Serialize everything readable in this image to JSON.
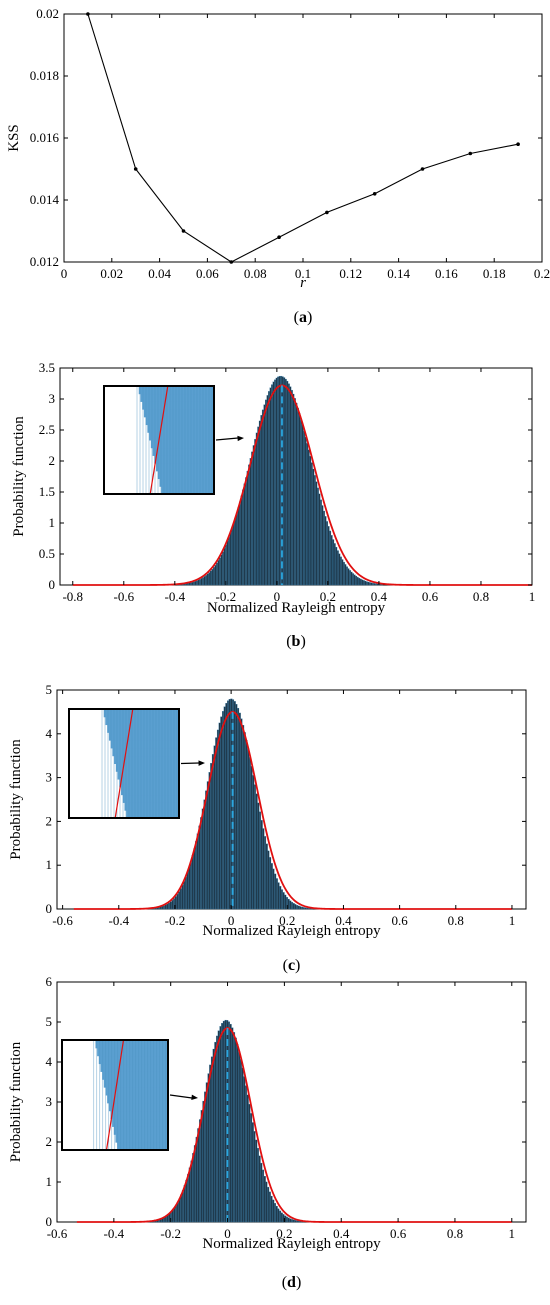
{
  "colors": {
    "axis": "#000000",
    "line_a": "#000000",
    "hist_fill": "#1f3a4d",
    "hist_edge": "#3a87b8",
    "inset_fill": "#5a9fd0",
    "fit_curve": "#e01010",
    "mean_line": "#2aa7e0"
  },
  "chart_data": [
    {
      "id": "a",
      "type": "line",
      "caption": {
        "open": "(",
        "letter": "a",
        "close": ")"
      },
      "xlabel": "r",
      "ylabel": "KSS",
      "xlim": [
        0,
        0.2
      ],
      "ylim": [
        0.012,
        0.02
      ],
      "xticks": [
        "0",
        "0.02",
        "0.04",
        "0.06",
        "0.08",
        "0.1",
        "0.12",
        "0.14",
        "0.16",
        "0.18",
        "0.2"
      ],
      "yticks": [
        "0.012",
        "0.014",
        "0.016",
        "0.018",
        "0.02"
      ],
      "grid": false,
      "x": [
        0.01,
        0.03,
        0.05,
        0.07,
        0.09,
        0.11,
        0.13,
        0.15,
        0.17,
        0.19
      ],
      "y": [
        0.02,
        0.015,
        0.013,
        0.012,
        0.0128,
        0.0136,
        0.0142,
        0.015,
        0.0155,
        0.0158
      ]
    },
    {
      "id": "b",
      "type": "histogram",
      "caption": {
        "open": "(",
        "letter": "b",
        "close": ")"
      },
      "xlabel": "Normalized Rayleigh entropy",
      "ylabel": "Probability function",
      "xlim": [
        -0.85,
        1
      ],
      "ylim": [
        0,
        3.5
      ],
      "xticks": [
        "-0.8",
        "-0.6",
        "-0.4",
        "-0.2",
        "0",
        "0.2",
        "0.4",
        "0.6",
        "0.8",
        "1"
      ],
      "yticks": [
        "0",
        "0.5",
        "1",
        "1.5",
        "2",
        "2.5",
        "3",
        "3.5"
      ],
      "hist_peak": 3.37,
      "hist_sigma": 0.118,
      "fit_peak": 3.22,
      "fit_sigma": 0.124,
      "mean": 0.02,
      "curve_range": [
        -0.8,
        1.0
      ],
      "inset": true
    },
    {
      "id": "c",
      "type": "histogram",
      "caption": {
        "open": "(",
        "letter": "c",
        "close": ")"
      },
      "xlabel": "Normalized Rayleigh entropy",
      "ylabel": "Probability function",
      "xlim": [
        -0.62,
        1.05
      ],
      "ylim": [
        0,
        5
      ],
      "xticks": [
        "-0.6",
        "-0.4",
        "-0.2",
        "0",
        "0.2",
        "0.4",
        "0.6",
        "0.8",
        "1"
      ],
      "yticks": [
        "0",
        "1",
        "2",
        "3",
        "4",
        "5"
      ],
      "hist_peak": 4.8,
      "hist_sigma": 0.083,
      "fit_peak": 4.5,
      "fit_sigma": 0.088,
      "mean": 0.005,
      "curve_range": [
        -0.56,
        1.0
      ],
      "inset": true
    },
    {
      "id": "d",
      "type": "histogram",
      "caption": {
        "open": "(",
        "letter": "d",
        "close": ")"
      },
      "xlabel": "Normalized Rayleigh entropy",
      "ylabel": "Probability function",
      "xlim": [
        -0.6,
        1.05
      ],
      "ylim": [
        0,
        6
      ],
      "xticks": [
        "-0.6",
        "-0.4",
        "-0.2",
        "0",
        "0.2",
        "0.4",
        "0.6",
        "0.8",
        "1"
      ],
      "yticks": [
        "0",
        "1",
        "2",
        "3",
        "4",
        "5",
        "6"
      ],
      "hist_peak": 5.05,
      "hist_sigma": 0.079,
      "fit_peak": 4.85,
      "fit_sigma": 0.082,
      "mean": 0.0,
      "curve_range": [
        -0.53,
        1.0
      ],
      "inset": true
    }
  ]
}
